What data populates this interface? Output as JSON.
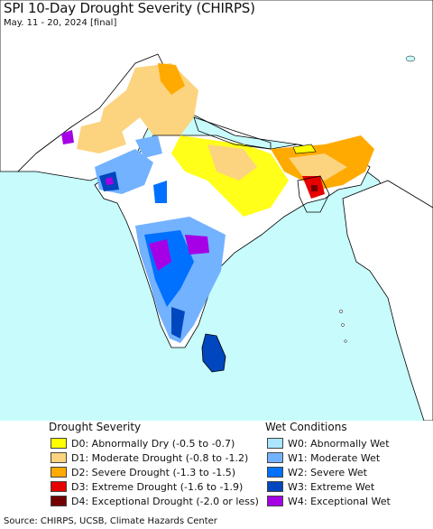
{
  "header": {
    "title": "SPI 10-Day Drought Severity (CHIRPS)",
    "subtitle": "May. 11 - 20, 2024 [final]"
  },
  "colors": {
    "ocean": "#c8fcfc",
    "land_outside": "#ffffff",
    "border": "#000000"
  },
  "legend": {
    "drought_title": "Drought Severity",
    "wet_title": "Wet Conditions",
    "drought": [
      {
        "label": "D0: Abnormally Dry (-0.5 to -0.7)",
        "color": "#ffff00"
      },
      {
        "label": "D1: Moderate Drought (-0.8 to -1.2)",
        "color": "#fcd37f"
      },
      {
        "label": "D2: Severe Drought (-1.3 to -1.5)",
        "color": "#ffaa00"
      },
      {
        "label": "D3: Extreme Drought (-1.6 to -1.9)",
        "color": "#e60000"
      },
      {
        "label": "D4: Exceptional Drought (-2.0 or less)",
        "color": "#730000"
      }
    ],
    "wet": [
      {
        "label": "W0: Abnormally Wet",
        "color": "#aae6ff"
      },
      {
        "label": "W1: Moderate Wet",
        "color": "#73b2ff"
      },
      {
        "label": "W2: Severe Wet",
        "color": "#0070ff"
      },
      {
        "label": "W3: Extreme Wet",
        "color": "#0046be"
      },
      {
        "label": "W4: Exceptional Wet",
        "color": "#a500e6"
      }
    ]
  },
  "footer": {
    "source": "Source: CHIRPS, UCSB, Climate Hazards Center"
  }
}
